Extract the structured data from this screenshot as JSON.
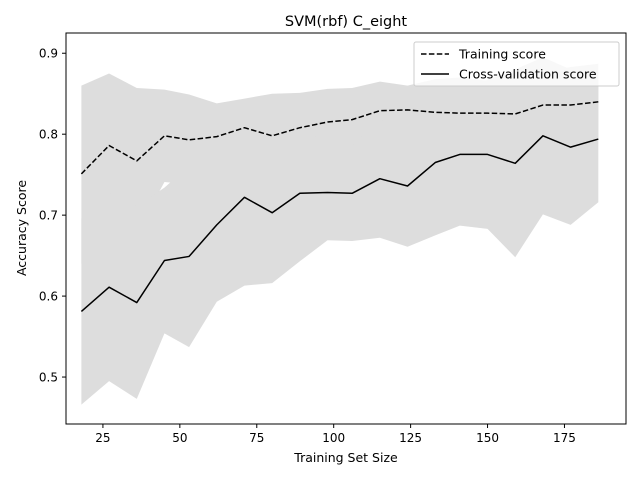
{
  "chart_data": {
    "type": "line",
    "title": "SVM(rbf) C_eight",
    "xlabel": "Training Set Size",
    "ylabel": "Accuracy Score",
    "xlim": [
      13,
      195
    ],
    "ylim": [
      0.442,
      0.925
    ],
    "xticks": [
      25,
      50,
      75,
      100,
      125,
      150,
      175
    ],
    "yticks": [
      0.5,
      0.6,
      0.7,
      0.8,
      0.9
    ],
    "grid": false,
    "legend_position": "top-right",
    "x": [
      18,
      27,
      36,
      45,
      53,
      62,
      71,
      80,
      89,
      98,
      106,
      115,
      124,
      133,
      141,
      150,
      159,
      168,
      177,
      186
    ],
    "series": [
      {
        "name": "Training score",
        "style": "dashed",
        "color": "#000000",
        "values": [
          0.751,
          0.786,
          0.767,
          0.798,
          0.793,
          0.797,
          0.808,
          0.798,
          0.808,
          0.815,
          0.818,
          0.829,
          0.83,
          0.827,
          0.826,
          0.826,
          0.825,
          0.836,
          0.836,
          0.84
        ],
        "band_lower": [
          0.64,
          0.698,
          0.678,
          0.741,
          0.738,
          0.752,
          0.772,
          0.746,
          0.764,
          0.774,
          0.778,
          0.794,
          0.796,
          0.786,
          0.783,
          0.79,
          0.792,
          0.795,
          0.789,
          0.793
        ],
        "band_upper": [
          0.86,
          0.875,
          0.857,
          0.855,
          0.849,
          0.838,
          0.844,
          0.85,
          0.851,
          0.856,
          0.857,
          0.865,
          0.86,
          0.868,
          0.87,
          0.866,
          0.861,
          0.877,
          0.883,
          0.887
        ]
      },
      {
        "name": "Cross-validation score",
        "style": "solid",
        "color": "#000000",
        "values": [
          0.581,
          0.611,
          0.592,
          0.644,
          0.649,
          0.688,
          0.722,
          0.703,
          0.727,
          0.728,
          0.727,
          0.745,
          0.736,
          0.765,
          0.775,
          0.775,
          0.764,
          0.798,
          0.784,
          0.794
        ],
        "band_lower": [
          0.466,
          0.495,
          0.473,
          0.554,
          0.537,
          0.593,
          0.613,
          0.616,
          0.643,
          0.669,
          0.668,
          0.672,
          0.661,
          0.675,
          0.687,
          0.683,
          0.648,
          0.701,
          0.688,
          0.716
        ],
        "band_upper": [
          0.696,
          0.727,
          0.711,
          0.734,
          0.761,
          0.783,
          0.83,
          0.79,
          0.811,
          0.787,
          0.786,
          0.818,
          0.811,
          0.855,
          0.863,
          0.867,
          0.88,
          0.895,
          0.88,
          0.872
        ]
      }
    ],
    "band_color": "#dddddd"
  }
}
